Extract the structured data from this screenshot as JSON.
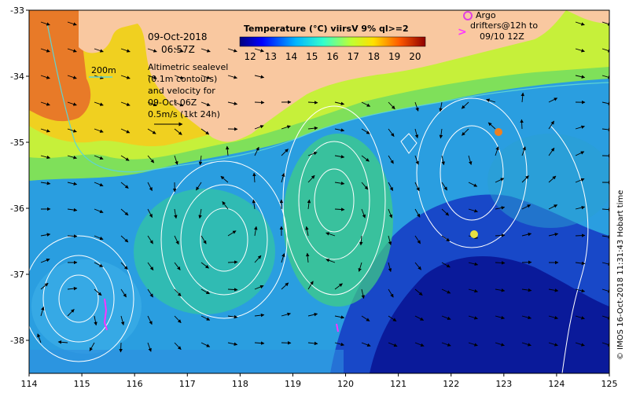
{
  "map": {
    "date_line": "09-Oct-2018",
    "time_line": "06:57Z",
    "contour_label": "200m",
    "note_lines": [
      "Altimetric sealevel",
      "(0.1m contours)",
      "and velocity for",
      "09-Oct 06Z",
      "0.5m/s (1kt 24h)"
    ],
    "credit": "© IMOS 16-Oct-2018 11:31:43 Hobart time",
    "lon_range": [
      114,
      125
    ],
    "lat_range": [
      -38.5,
      -33
    ],
    "lon_ticks": [
      "114",
      "115",
      "116",
      "117",
      "118",
      "119",
      "120",
      "121",
      "122",
      "123",
      "124",
      "125"
    ],
    "lat_ticks": [
      "-33",
      "-34",
      "-35",
      "-36",
      "-37",
      "-38"
    ]
  },
  "colorbar": {
    "title": "Temperature (°C) viirsV 9% ql>=2",
    "ticks": [
      "12",
      "13",
      "14",
      "15",
      "16",
      "17",
      "18",
      "19",
      "20"
    ],
    "range": [
      11.5,
      20.5
    ]
  },
  "legend": {
    "argo_label": "Argo",
    "drifter_symbol": ">",
    "drifter_label_1": "drifters@12h to",
    "drifter_label_2": "09/10 12Z"
  },
  "colors": {
    "land": "#f9c8a0",
    "contour": "#ffffff",
    "isobath": "#5fd3d3",
    "arrow": "#000000",
    "argo": "#e040e0",
    "drifter": "#ff33ff"
  }
}
